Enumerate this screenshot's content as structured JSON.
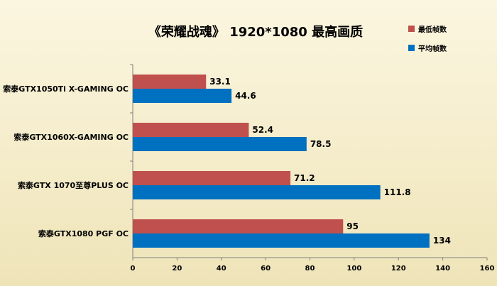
{
  "chart_data": {
    "type": "bar",
    "orientation": "horizontal",
    "title": "《荣耀战魂》 1920*1080 最高画质",
    "categories": [
      "索泰GTX1050Ti X-GAMING OC",
      "索泰GTX1060X-GAMING OC",
      "索泰GTX 1070至尊PLUS OC",
      "索泰GTX1080 PGF OC"
    ],
    "series": [
      {
        "name": "最低帧数",
        "color": "#c0504d",
        "values": [
          33.1,
          52.4,
          71.2,
          95
        ]
      },
      {
        "name": "平均帧数",
        "color": "#0070c0",
        "values": [
          44.6,
          78.5,
          111.8,
          134
        ]
      }
    ],
    "value_labels": [
      [
        "33.1",
        "52.4",
        "71.2",
        "95"
      ],
      [
        "44.6",
        "78.5",
        "111.8",
        "134"
      ]
    ],
    "xlim": [
      0,
      160
    ],
    "xticks": [
      "0",
      "20",
      "40",
      "60",
      "80",
      "100",
      "120",
      "140",
      "160"
    ],
    "xlabel": "",
    "ylabel": "",
    "grid": false,
    "legend_position": "top-right",
    "background": "#f6efcf"
  }
}
